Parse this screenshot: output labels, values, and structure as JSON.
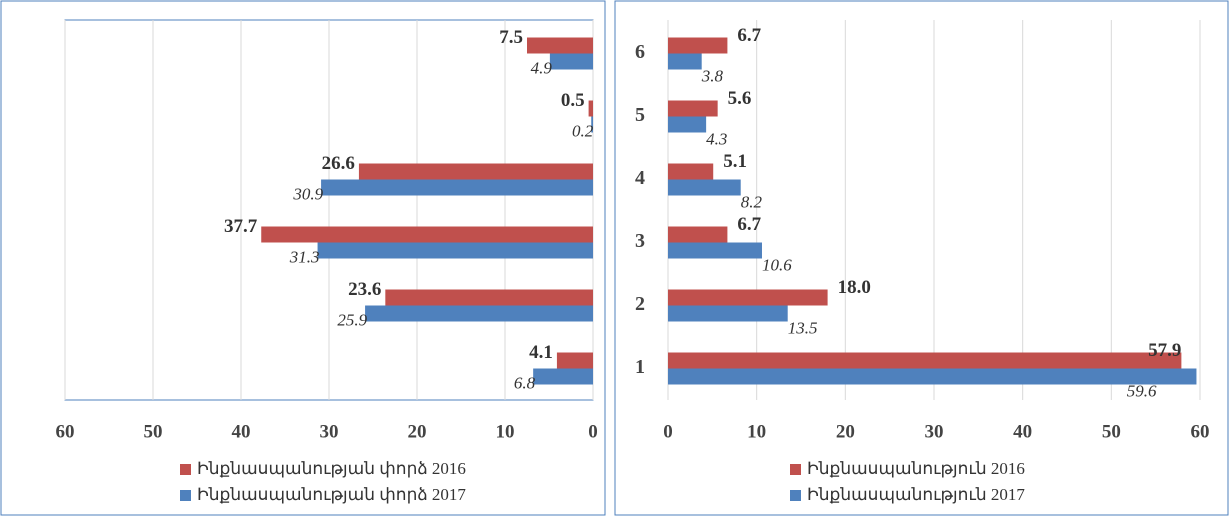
{
  "chart_data": [
    {
      "type": "bar",
      "orientation": "horizontal",
      "x_reversed": true,
      "categories": [
        null,
        null,
        null,
        null,
        null,
        null
      ],
      "series": [
        {
          "name": "Ինքնասպանության փորձ 2016",
          "color": "#c0504d",
          "values": [
            4.1,
            23.6,
            37.7,
            26.6,
            0.5,
            7.5
          ]
        },
        {
          "name": "Ինքնասպանության փորձ 2017",
          "color": "#4f81bd",
          "values": [
            6.8,
            25.9,
            31.3,
            30.9,
            0.2,
            4.9
          ]
        }
      ],
      "xlim": [
        0,
        60
      ],
      "xticks": [
        0,
        10,
        20,
        30,
        40,
        50,
        60
      ],
      "grid": true
    },
    {
      "type": "bar",
      "orientation": "horizontal",
      "x_reversed": false,
      "categories": [
        "1",
        "2",
        "3",
        "4",
        "5",
        "6"
      ],
      "series": [
        {
          "name": "Ինքնասպանություն 2016",
          "color": "#c0504d",
          "values": [
            57.9,
            18.0,
            6.7,
            5.1,
            5.6,
            6.7
          ],
          "value_labels": [
            "57.9",
            "18.0",
            "6.7",
            "5.1",
            "5.6",
            "6.7"
          ]
        },
        {
          "name": "Ինքնասպանություն 2017",
          "color": "#4f81bd",
          "values": [
            59.6,
            13.5,
            10.6,
            8.2,
            4.3,
            3.8
          ]
        }
      ],
      "xlim": [
        0,
        60
      ],
      "xticks": [
        0,
        10,
        20,
        30,
        40,
        50,
        60
      ],
      "grid": true
    }
  ]
}
